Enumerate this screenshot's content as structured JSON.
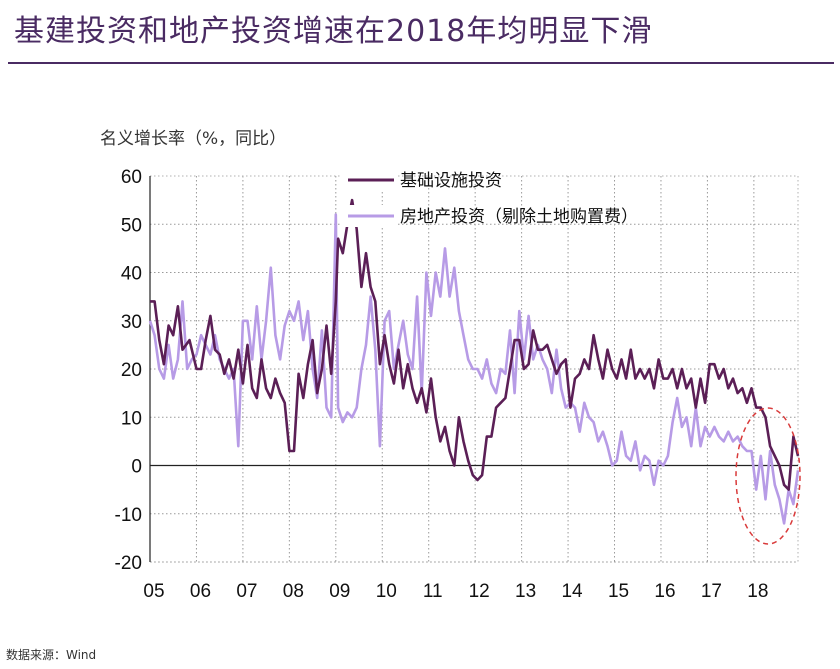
{
  "page_title": "基建投资和地产投资增速在2018年均明显下滑",
  "units_label": "名义增长率（%，同比）",
  "source_label": "数据来源：Wind",
  "chart_data": {
    "type": "line",
    "title": "基建投资和地产投资增速在2018年均明显下滑",
    "ylabel": "名义增长率（%，同比）",
    "xlabel": "",
    "ylim": [
      -20,
      60
    ],
    "yticks": [
      -20,
      -10,
      0,
      10,
      20,
      30,
      40,
      50,
      60
    ],
    "xlim": [
      2005.0,
      2018.95
    ],
    "xticks": [
      {
        "pos": 2005,
        "label": "05"
      },
      {
        "pos": 2006,
        "label": "06"
      },
      {
        "pos": 2007,
        "label": "07"
      },
      {
        "pos": 2008,
        "label": "08"
      },
      {
        "pos": 2009,
        "label": "09"
      },
      {
        "pos": 2010,
        "label": "10"
      },
      {
        "pos": 2011,
        "label": "11"
      },
      {
        "pos": 2012,
        "label": "12"
      },
      {
        "pos": 2013,
        "label": "13"
      },
      {
        "pos": 2014,
        "label": "14"
      },
      {
        "pos": 2015,
        "label": "15"
      },
      {
        "pos": 2016,
        "label": "16"
      },
      {
        "pos": 2017,
        "label": "17"
      },
      {
        "pos": 2018,
        "label": "18"
      }
    ],
    "grid": true,
    "legend_position": "top-center",
    "annotation": "dashed red ellipse highlighting 2018 decline",
    "series": [
      {
        "name": "基础设施投资",
        "color": "#5b1f56",
        "points": [
          [
            2005.0,
            34
          ],
          [
            2005.1,
            34
          ],
          [
            2005.2,
            26
          ],
          [
            2005.3,
            21
          ],
          [
            2005.4,
            29
          ],
          [
            2005.5,
            27
          ],
          [
            2005.6,
            33
          ],
          [
            2005.7,
            24
          ],
          [
            2005.85,
            26
          ],
          [
            2006.0,
            20
          ],
          [
            2006.1,
            20
          ],
          [
            2006.2,
            26
          ],
          [
            2006.3,
            31
          ],
          [
            2006.4,
            24
          ],
          [
            2006.5,
            23
          ],
          [
            2006.6,
            19
          ],
          [
            2006.7,
            22
          ],
          [
            2006.8,
            18
          ],
          [
            2006.9,
            24
          ],
          [
            2007.0,
            17
          ],
          [
            2007.1,
            25
          ],
          [
            2007.2,
            16
          ],
          [
            2007.3,
            14
          ],
          [
            2007.4,
            22
          ],
          [
            2007.5,
            16
          ],
          [
            2007.6,
            14
          ],
          [
            2007.7,
            18
          ],
          [
            2007.8,
            15
          ],
          [
            2007.9,
            13
          ],
          [
            2008.0,
            3
          ],
          [
            2008.1,
            3
          ],
          [
            2008.2,
            19
          ],
          [
            2008.3,
            14
          ],
          [
            2008.4,
            21
          ],
          [
            2008.5,
            26
          ],
          [
            2008.6,
            15
          ],
          [
            2008.7,
            20
          ],
          [
            2008.8,
            29
          ],
          [
            2008.9,
            19
          ],
          [
            2009.0,
            34
          ],
          [
            2009.05,
            47
          ],
          [
            2009.15,
            44
          ],
          [
            2009.25,
            50
          ],
          [
            2009.35,
            55
          ],
          [
            2009.45,
            49
          ],
          [
            2009.55,
            37
          ],
          [
            2009.65,
            44
          ],
          [
            2009.75,
            37
          ],
          [
            2009.85,
            34
          ],
          [
            2009.95,
            21
          ],
          [
            2010.05,
            27
          ],
          [
            2010.15,
            21
          ],
          [
            2010.25,
            17
          ],
          [
            2010.35,
            24
          ],
          [
            2010.45,
            16
          ],
          [
            2010.55,
            21
          ],
          [
            2010.65,
            16
          ],
          [
            2010.75,
            13
          ],
          [
            2010.85,
            16
          ],
          [
            2010.95,
            11
          ],
          [
            2011.05,
            18
          ],
          [
            2011.15,
            10
          ],
          [
            2011.25,
            5
          ],
          [
            2011.35,
            8
          ],
          [
            2011.45,
            3
          ],
          [
            2011.55,
            0
          ],
          [
            2011.65,
            10
          ],
          [
            2011.75,
            5
          ],
          [
            2011.85,
            1
          ],
          [
            2011.95,
            -2
          ],
          [
            2012.05,
            -3
          ],
          [
            2012.15,
            -2
          ],
          [
            2012.25,
            6
          ],
          [
            2012.35,
            6
          ],
          [
            2012.45,
            12
          ],
          [
            2012.55,
            13
          ],
          [
            2012.65,
            14
          ],
          [
            2012.75,
            20
          ],
          [
            2012.85,
            26
          ],
          [
            2012.95,
            26
          ],
          [
            2013.05,
            20
          ],
          [
            2013.15,
            21
          ],
          [
            2013.25,
            28
          ],
          [
            2013.35,
            24
          ],
          [
            2013.45,
            24
          ],
          [
            2013.55,
            25
          ],
          [
            2013.65,
            22
          ],
          [
            2013.75,
            19
          ],
          [
            2013.85,
            21
          ],
          [
            2013.95,
            22
          ],
          [
            2014.05,
            12
          ],
          [
            2014.15,
            18
          ],
          [
            2014.25,
            19
          ],
          [
            2014.35,
            22
          ],
          [
            2014.45,
            20
          ],
          [
            2014.55,
            27
          ],
          [
            2014.65,
            22
          ],
          [
            2014.75,
            18
          ],
          [
            2014.85,
            24
          ],
          [
            2014.95,
            20
          ],
          [
            2015.05,
            18
          ],
          [
            2015.15,
            22
          ],
          [
            2015.25,
            18
          ],
          [
            2015.35,
            24
          ],
          [
            2015.45,
            18
          ],
          [
            2015.55,
            20
          ],
          [
            2015.65,
            18
          ],
          [
            2015.75,
            20
          ],
          [
            2015.85,
            16
          ],
          [
            2015.95,
            22
          ],
          [
            2016.05,
            18
          ],
          [
            2016.15,
            18
          ],
          [
            2016.25,
            20
          ],
          [
            2016.35,
            16
          ],
          [
            2016.45,
            20
          ],
          [
            2016.55,
            16
          ],
          [
            2016.65,
            18
          ],
          [
            2016.75,
            12
          ],
          [
            2016.85,
            18
          ],
          [
            2016.95,
            13
          ],
          [
            2017.05,
            21
          ],
          [
            2017.15,
            21
          ],
          [
            2017.25,
            18
          ],
          [
            2017.35,
            20
          ],
          [
            2017.45,
            16
          ],
          [
            2017.55,
            18
          ],
          [
            2017.65,
            15
          ],
          [
            2017.75,
            16
          ],
          [
            2017.85,
            13
          ],
          [
            2017.95,
            16
          ],
          [
            2018.05,
            12
          ],
          [
            2018.15,
            12
          ],
          [
            2018.25,
            10
          ],
          [
            2018.35,
            4
          ],
          [
            2018.45,
            2
          ],
          [
            2018.55,
            0
          ],
          [
            2018.65,
            -4
          ],
          [
            2018.75,
            -5
          ],
          [
            2018.85,
            6
          ],
          [
            2018.95,
            2
          ]
        ]
      },
      {
        "name": "房地产投资（剔除土地购置费）",
        "color": "#b79be6",
        "points": [
          [
            2005.0,
            30
          ],
          [
            2005.1,
            27
          ],
          [
            2005.2,
            20
          ],
          [
            2005.3,
            18
          ],
          [
            2005.4,
            25
          ],
          [
            2005.5,
            18
          ],
          [
            2005.6,
            22
          ],
          [
            2005.7,
            34
          ],
          [
            2005.8,
            20
          ],
          [
            2005.9,
            22
          ],
          [
            2006.0,
            23
          ],
          [
            2006.1,
            27
          ],
          [
            2006.2,
            25
          ],
          [
            2006.3,
            23
          ],
          [
            2006.4,
            27
          ],
          [
            2006.5,
            22
          ],
          [
            2006.6,
            20
          ],
          [
            2006.7,
            18
          ],
          [
            2006.8,
            20
          ],
          [
            2006.9,
            4
          ],
          [
            2007.0,
            30
          ],
          [
            2007.1,
            30
          ],
          [
            2007.2,
            22
          ],
          [
            2007.3,
            33
          ],
          [
            2007.4,
            22
          ],
          [
            2007.5,
            30
          ],
          [
            2007.6,
            41
          ],
          [
            2007.7,
            27
          ],
          [
            2007.8,
            22
          ],
          [
            2007.9,
            29
          ],
          [
            2008.0,
            32
          ],
          [
            2008.1,
            30
          ],
          [
            2008.2,
            34
          ],
          [
            2008.3,
            26
          ],
          [
            2008.4,
            32
          ],
          [
            2008.5,
            20
          ],
          [
            2008.6,
            14
          ],
          [
            2008.7,
            28
          ],
          [
            2008.8,
            12
          ],
          [
            2008.9,
            10
          ],
          [
            2009.0,
            52
          ],
          [
            2009.05,
            12
          ],
          [
            2009.15,
            9
          ],
          [
            2009.25,
            11
          ],
          [
            2009.35,
            10
          ],
          [
            2009.45,
            12
          ],
          [
            2009.55,
            20
          ],
          [
            2009.65,
            25
          ],
          [
            2009.75,
            35
          ],
          [
            2009.85,
            24
          ],
          [
            2009.95,
            4
          ],
          [
            2010.05,
            30
          ],
          [
            2010.15,
            32
          ],
          [
            2010.25,
            20
          ],
          [
            2010.35,
            25
          ],
          [
            2010.45,
            30
          ],
          [
            2010.55,
            23
          ],
          [
            2010.65,
            20
          ],
          [
            2010.75,
            35
          ],
          [
            2010.85,
            15
          ],
          [
            2010.95,
            40
          ],
          [
            2011.05,
            31
          ],
          [
            2011.15,
            40
          ],
          [
            2011.25,
            35
          ],
          [
            2011.35,
            45
          ],
          [
            2011.45,
            35
          ],
          [
            2011.55,
            41
          ],
          [
            2011.65,
            32
          ],
          [
            2011.75,
            27
          ],
          [
            2011.85,
            22
          ],
          [
            2011.95,
            20
          ],
          [
            2012.05,
            20
          ],
          [
            2012.15,
            18
          ],
          [
            2012.25,
            22
          ],
          [
            2012.35,
            17
          ],
          [
            2012.45,
            15
          ],
          [
            2012.55,
            20
          ],
          [
            2012.65,
            19
          ],
          [
            2012.75,
            28
          ],
          [
            2012.85,
            15
          ],
          [
            2012.95,
            32
          ],
          [
            2013.05,
            22
          ],
          [
            2013.15,
            31
          ],
          [
            2013.25,
            22
          ],
          [
            2013.35,
            25
          ],
          [
            2013.45,
            22
          ],
          [
            2013.55,
            20
          ],
          [
            2013.65,
            15
          ],
          [
            2013.75,
            24
          ],
          [
            2013.85,
            16
          ],
          [
            2013.95,
            12
          ],
          [
            2014.05,
            13
          ],
          [
            2014.15,
            12
          ],
          [
            2014.25,
            7
          ],
          [
            2014.35,
            13
          ],
          [
            2014.45,
            10
          ],
          [
            2014.55,
            9
          ],
          [
            2014.65,
            5
          ],
          [
            2014.75,
            7
          ],
          [
            2014.85,
            4
          ],
          [
            2014.95,
            0
          ],
          [
            2015.05,
            1
          ],
          [
            2015.15,
            7
          ],
          [
            2015.25,
            2
          ],
          [
            2015.35,
            1
          ],
          [
            2015.45,
            5
          ],
          [
            2015.55,
            -1
          ],
          [
            2015.65,
            2
          ],
          [
            2015.75,
            1
          ],
          [
            2015.85,
            -4
          ],
          [
            2015.95,
            1
          ],
          [
            2016.05,
            0
          ],
          [
            2016.15,
            2
          ],
          [
            2016.25,
            9
          ],
          [
            2016.35,
            14
          ],
          [
            2016.45,
            8
          ],
          [
            2016.55,
            10
          ],
          [
            2016.65,
            4
          ],
          [
            2016.75,
            12
          ],
          [
            2016.85,
            4
          ],
          [
            2016.95,
            8
          ],
          [
            2017.05,
            6
          ],
          [
            2017.15,
            8
          ],
          [
            2017.25,
            6
          ],
          [
            2017.35,
            5
          ],
          [
            2017.45,
            7
          ],
          [
            2017.55,
            5
          ],
          [
            2017.65,
            6
          ],
          [
            2017.75,
            4
          ],
          [
            2017.85,
            3
          ],
          [
            2017.95,
            3
          ],
          [
            2018.05,
            -5
          ],
          [
            2018.15,
            2
          ],
          [
            2018.25,
            -7
          ],
          [
            2018.35,
            3
          ],
          [
            2018.45,
            -4
          ],
          [
            2018.55,
            -7
          ],
          [
            2018.65,
            -12
          ],
          [
            2018.75,
            -5
          ],
          [
            2018.85,
            -8
          ],
          [
            2018.95,
            -1
          ]
        ]
      }
    ]
  }
}
